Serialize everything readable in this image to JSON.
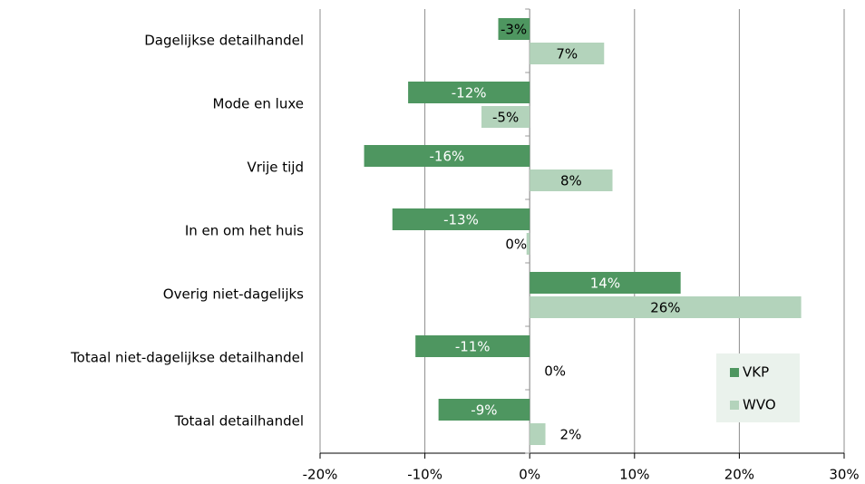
{
  "chart_data": {
    "type": "hbar",
    "categories": [
      "Dagelijkse detailhandel",
      "Mode en luxe",
      "Vrije tijd",
      "In en om het huis",
      "Overig niet-dagelijks",
      "Totaal niet-dagelijkse detailhandel",
      "Totaal detailhandel"
    ],
    "series": [
      {
        "name": "VKP",
        "color": "#4e9660",
        "values": [
          -3,
          -11.6,
          -15.8,
          -13.1,
          14.4,
          -10.9,
          -8.7
        ],
        "value_labels": [
          "-3%",
          "-12%",
          "-16%",
          "-13%",
          "14%",
          "-11%",
          "-9%"
        ]
      },
      {
        "name": "WVO",
        "color": "#b3d3bb",
        "values": [
          7.1,
          -4.6,
          7.9,
          -0.3,
          25.9,
          0,
          1.5
        ],
        "value_labels": [
          "7%",
          "-5%",
          "8%",
          "0%",
          "26%",
          "0%",
          "2%"
        ]
      }
    ],
    "xlim": [
      -20,
      30
    ],
    "xticks": [
      {
        "value": -20,
        "label": "-20%"
      },
      {
        "value": -10,
        "label": "-10%"
      },
      {
        "value": 0,
        "label": "0%"
      },
      {
        "value": 10,
        "label": "10%"
      },
      {
        "value": 20,
        "label": "20%"
      },
      {
        "value": 30,
        "label": "30%"
      }
    ],
    "grid": true,
    "legend": "lower right"
  }
}
